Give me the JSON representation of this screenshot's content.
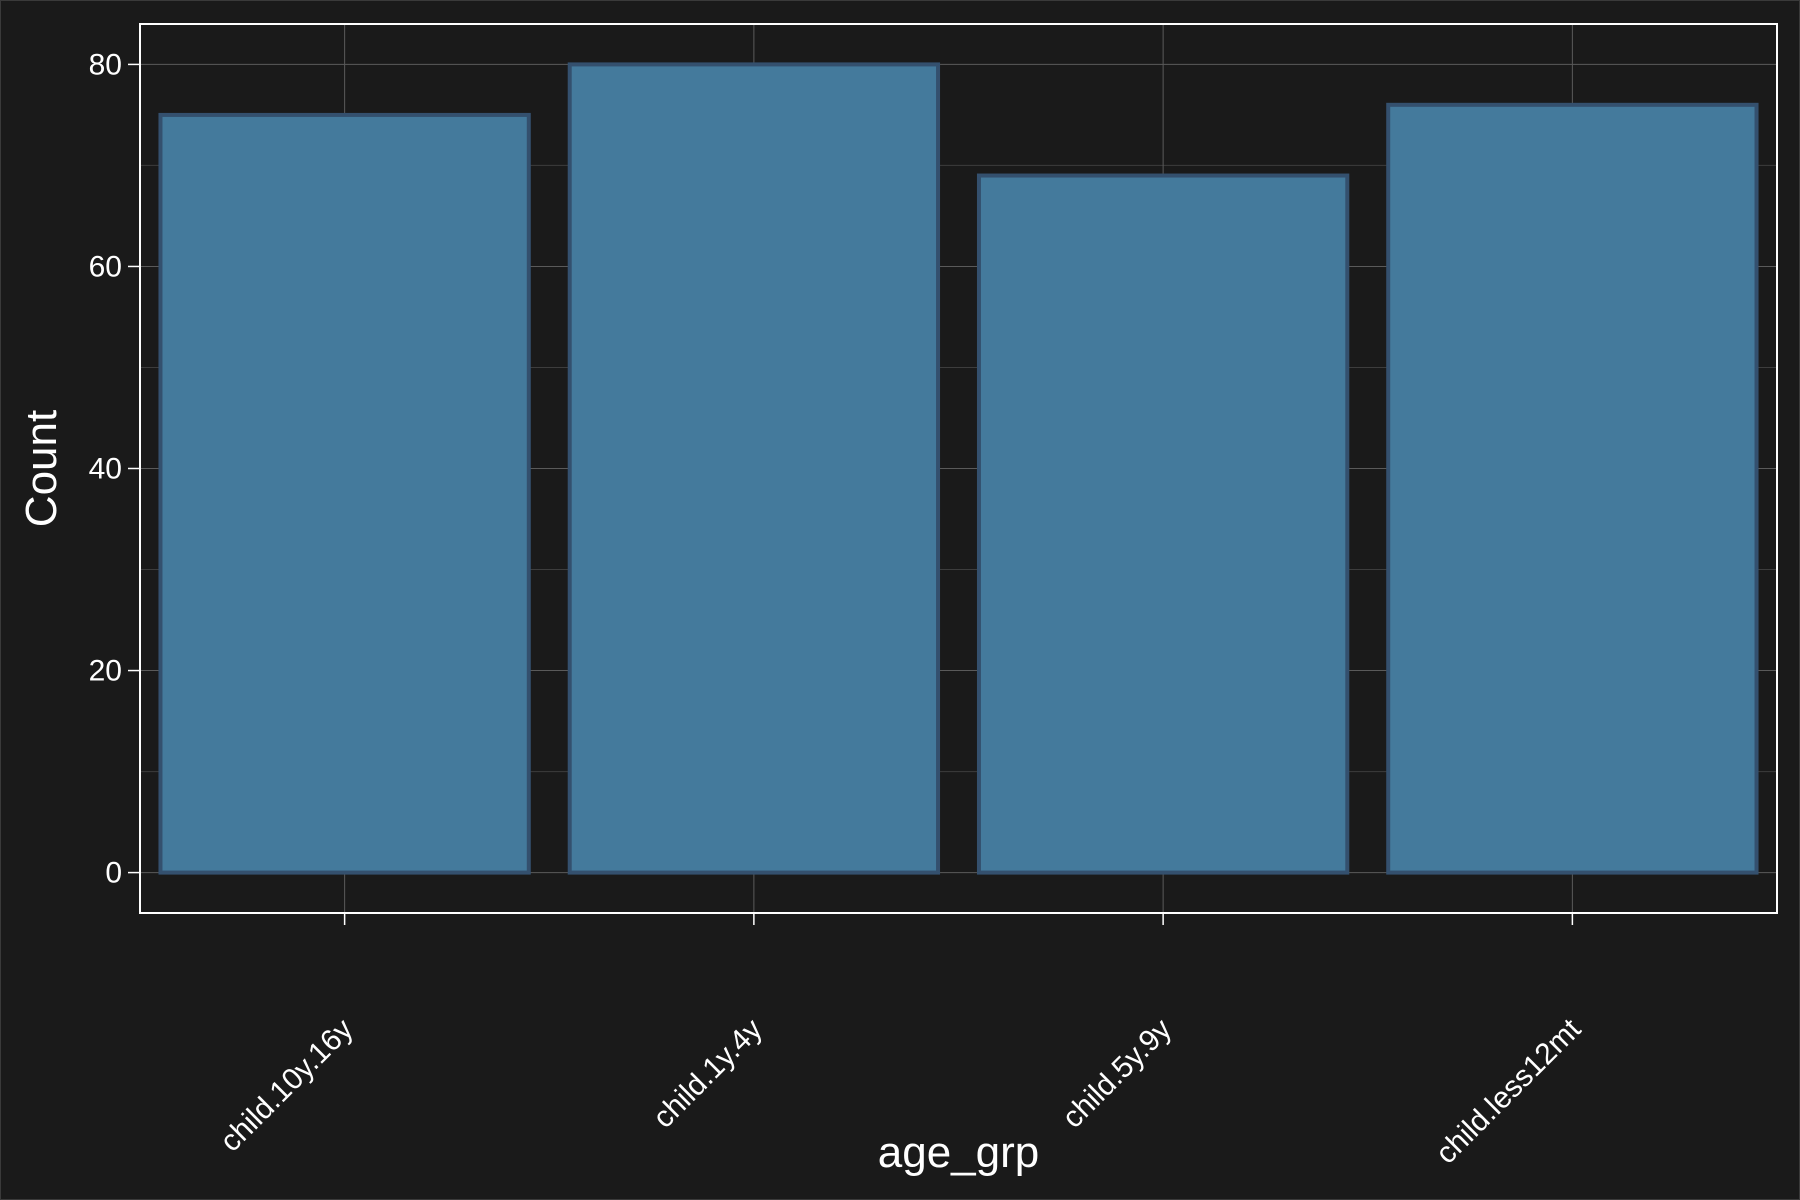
{
  "chart_data": {
    "type": "bar",
    "title": "",
    "xlabel": "age_grp",
    "ylabel": "Count",
    "categories": [
      "child.10y.16y",
      "child.1y.4y",
      "child.5y.9y",
      "child.less12mt"
    ],
    "values": [
      75,
      80,
      69,
      76
    ],
    "ylim": [
      -4,
      84
    ],
    "yticks": [
      0,
      20,
      40,
      60,
      80
    ],
    "grid": true,
    "legend": "none"
  },
  "colors": {
    "background": "#1a1a1a",
    "panel_border": "#ffffff",
    "grid_major": "#5a5a5a",
    "grid_minor": "#3d3d3d",
    "bar_fill": "#447a9c",
    "bar_stroke": "#34506e",
    "text": "#ffffff"
  }
}
